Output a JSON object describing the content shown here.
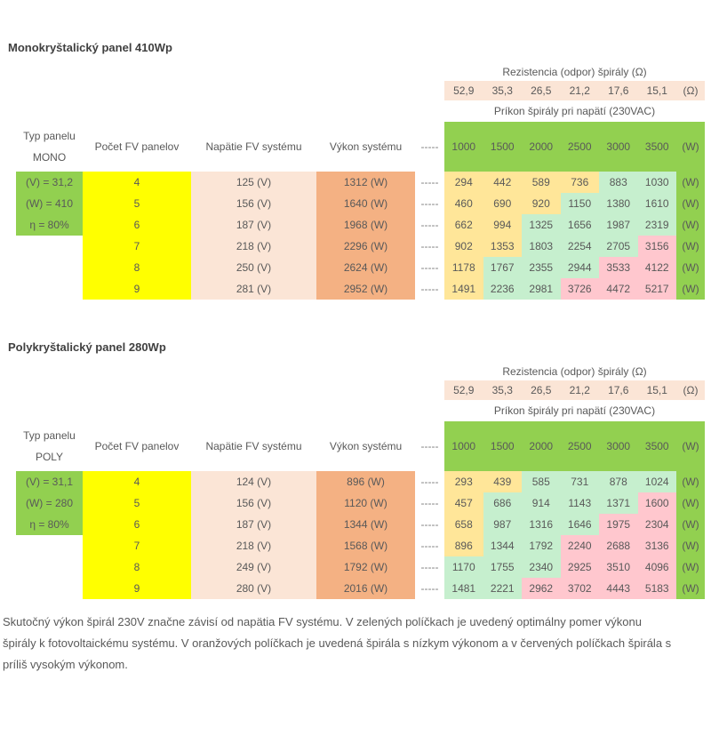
{
  "colors": {
    "header_green": "#92D050",
    "count_column_yellow": "#FFFF00",
    "voltage_column_peach": "#FBE5D6",
    "power_column_orange": "#F4B183",
    "cell_low_power_yellow": "#FFE699",
    "cell_optimal_green": "#C6EFCE",
    "cell_high_power_pink": "#FFC7CE",
    "text_gray": "#595959"
  },
  "tables": [
    {
      "title": "Monokryštalický panel 410Wp",
      "resistance_header": "Rezistencia (odpor) špirály (Ω)",
      "resistance_values": [
        "52,9",
        "35,3",
        "26,5",
        "21,2",
        "17,6",
        "15,1"
      ],
      "resistance_unit": "(Ω)",
      "power_header": "Príkon špirály pri napätí (230VAC)",
      "power_values": [
        "1000",
        "1500",
        "2000",
        "2500",
        "3000",
        "3500"
      ],
      "power_unit": "(W)",
      "columns": {
        "type_label": "Typ panelu",
        "type_name": "MONO",
        "count_label": "Počet FV panelov",
        "voltage_label": "Napätie FV systému",
        "power_label": "Výkon systému",
        "separator": "-----"
      },
      "panel_specs": [
        "(V) = 31,2",
        "(W) = 410",
        "η = 80%"
      ],
      "rows": [
        {
          "count": "4",
          "voltage": "125 (V)",
          "power": "1312 (W)",
          "separator": "-----",
          "watts": [
            "294",
            "442",
            "589",
            "736",
            "883",
            "1030"
          ],
          "tones": [
            "low",
            "low",
            "low",
            "low",
            "ok",
            "ok"
          ],
          "unit": "(W)"
        },
        {
          "count": "5",
          "voltage": "156 (V)",
          "power": "1640 (W)",
          "separator": "-----",
          "watts": [
            "460",
            "690",
            "920",
            "1150",
            "1380",
            "1610"
          ],
          "tones": [
            "low",
            "low",
            "low",
            "ok",
            "ok",
            "ok"
          ],
          "unit": "(W)"
        },
        {
          "count": "6",
          "voltage": "187 (V)",
          "power": "1968 (W)",
          "separator": "-----",
          "watts": [
            "662",
            "994",
            "1325",
            "1656",
            "1987",
            "2319"
          ],
          "tones": [
            "low",
            "low",
            "ok",
            "ok",
            "ok",
            "ok"
          ],
          "unit": "(W)"
        },
        {
          "count": "7",
          "voltage": "218 (V)",
          "power": "2296 (W)",
          "separator": "-----",
          "watts": [
            "902",
            "1353",
            "1803",
            "2254",
            "2705",
            "3156"
          ],
          "tones": [
            "low",
            "low",
            "ok",
            "ok",
            "ok",
            "high"
          ],
          "unit": "(W)"
        },
        {
          "count": "8",
          "voltage": "250 (V)",
          "power": "2624 (W)",
          "separator": "-----",
          "watts": [
            "1178",
            "1767",
            "2355",
            "2944",
            "3533",
            "4122"
          ],
          "tones": [
            "low",
            "ok",
            "ok",
            "ok",
            "high",
            "high"
          ],
          "unit": "(W)"
        },
        {
          "count": "9",
          "voltage": "281 (V)",
          "power": "2952 (W)",
          "separator": "-----",
          "watts": [
            "1491",
            "2236",
            "2981",
            "3726",
            "4472",
            "5217"
          ],
          "tones": [
            "low",
            "ok",
            "ok",
            "high",
            "high",
            "high"
          ],
          "unit": "(W)"
        }
      ]
    },
    {
      "title": "Polykryštalický panel 280Wp",
      "resistance_header": "Rezistencia (odpor) špirály (Ω)",
      "resistance_values": [
        "52,9",
        "35,3",
        "26,5",
        "21,2",
        "17,6",
        "15,1"
      ],
      "resistance_unit": "(Ω)",
      "power_header": "Príkon špirály pri napätí (230VAC)",
      "power_values": [
        "1000",
        "1500",
        "2000",
        "2500",
        "3000",
        "3500"
      ],
      "power_unit": "(W)",
      "columns": {
        "type_label": "Typ panelu",
        "type_name": "POLY",
        "count_label": "Počet FV panelov",
        "voltage_label": "Napätie FV systému",
        "power_label": "Výkon systému",
        "separator": "-----"
      },
      "panel_specs": [
        "(V) = 31,1",
        "(W) = 280",
        "η = 80%"
      ],
      "rows": [
        {
          "count": "4",
          "voltage": "124 (V)",
          "power": "896 (W)",
          "separator": "-----",
          "watts": [
            "293",
            "439",
            "585",
            "731",
            "878",
            "1024"
          ],
          "tones": [
            "low",
            "low",
            "ok",
            "ok",
            "ok",
            "ok"
          ],
          "unit": "(W)"
        },
        {
          "count": "5",
          "voltage": "156 (V)",
          "power": "1120 (W)",
          "separator": "-----",
          "watts": [
            "457",
            "686",
            "914",
            "1143",
            "1371",
            "1600"
          ],
          "tones": [
            "low",
            "ok",
            "ok",
            "ok",
            "ok",
            "high"
          ],
          "unit": "(W)"
        },
        {
          "count": "6",
          "voltage": "187 (V)",
          "power": "1344 (W)",
          "separator": "-----",
          "watts": [
            "658",
            "987",
            "1316",
            "1646",
            "1975",
            "2304"
          ],
          "tones": [
            "low",
            "ok",
            "ok",
            "ok",
            "high",
            "high"
          ],
          "unit": "(W)"
        },
        {
          "count": "7",
          "voltage": "218 (V)",
          "power": "1568 (W)",
          "separator": "-----",
          "watts": [
            "896",
            "1344",
            "1792",
            "2240",
            "2688",
            "3136"
          ],
          "tones": [
            "low",
            "ok",
            "ok",
            "high",
            "high",
            "high"
          ],
          "unit": "(W)"
        },
        {
          "count": "8",
          "voltage": "249 (V)",
          "power": "1792 (W)",
          "separator": "-----",
          "watts": [
            "1170",
            "1755",
            "2340",
            "2925",
            "3510",
            "4096"
          ],
          "tones": [
            "ok",
            "ok",
            "ok",
            "high",
            "high",
            "high"
          ],
          "unit": "(W)"
        },
        {
          "count": "9",
          "voltage": "280 (V)",
          "power": "2016 (W)",
          "separator": "-----",
          "watts": [
            "1481",
            "2221",
            "2962",
            "3702",
            "4443",
            "5183"
          ],
          "tones": [
            "ok",
            "ok",
            "high",
            "high",
            "high",
            "high"
          ],
          "unit": "(W)"
        }
      ]
    }
  ],
  "footer": {
    "lines": [
      "Skutočný výkon špirál 230V značne závisí od napätia FV systému. V zelených políčkach je uvedený optimálny pomer výkonu",
      "špirály k fotovoltaickému systému. V oranžových políčkach je uvedená špirála s nízkym výkonom a v červených políčkach špirála s",
      "príliš vysokým výkonom."
    ]
  }
}
